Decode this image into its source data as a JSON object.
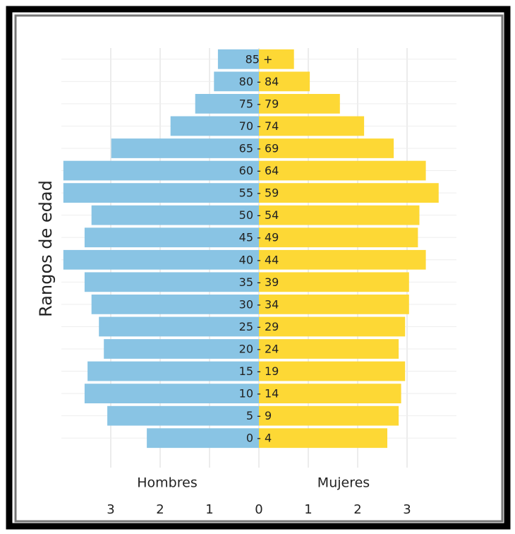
{
  "chart_data": {
    "type": "population-pyramid",
    "ylabel": "Rangos de edad",
    "categories": [
      "0 - 4",
      "5 - 9",
      "10 - 14",
      "15 - 19",
      "20 - 24",
      "25 - 29",
      "30 - 34",
      "35 - 39",
      "40 - 44",
      "45 - 49",
      "50 - 54",
      "55 - 59",
      "60 - 64",
      "65 - 69",
      "70 - 74",
      "75 - 79",
      "80 - 84",
      "85 +"
    ],
    "series": [
      {
        "name": "Hombres",
        "color": "#89c4e4",
        "values": [
          -2.27,
          -3.07,
          -3.53,
          -3.47,
          -3.14,
          -3.24,
          -3.39,
          -3.53,
          -3.96,
          -3.53,
          -3.39,
          -3.96,
          -3.96,
          -2.99,
          -1.79,
          -1.29,
          -0.91,
          -0.83
        ]
      },
      {
        "name": "Mujeres",
        "color": "#fdd835",
        "values": [
          2.6,
          2.83,
          2.88,
          2.96,
          2.83,
          2.96,
          3.04,
          3.04,
          3.38,
          3.22,
          3.25,
          3.64,
          3.38,
          2.73,
          2.13,
          1.64,
          1.03,
          0.71
        ]
      }
    ],
    "xlim": [
      -4,
      4
    ],
    "xticks": [
      {
        "value": -3,
        "label": "3"
      },
      {
        "value": -2,
        "label": "2"
      },
      {
        "value": -1,
        "label": "1"
      },
      0,
      1,
      2,
      3
    ],
    "grid": true
  }
}
